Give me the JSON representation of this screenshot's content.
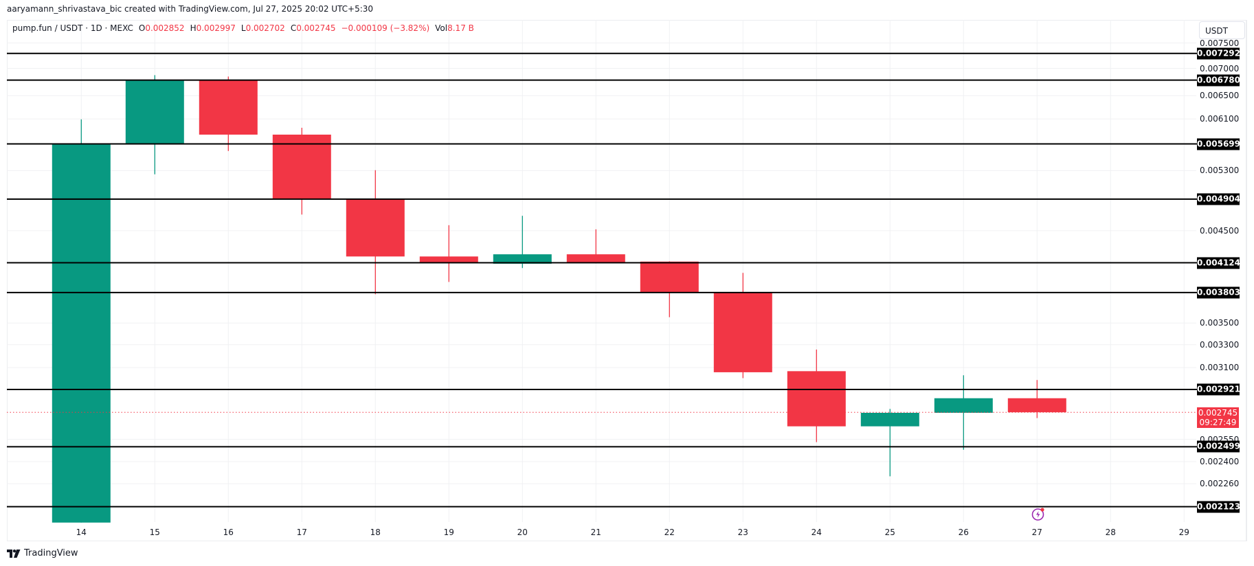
{
  "attribution": "aaryamann_shrivastava_bic created with TradingView.com, Jul 27, 2025 20:02 UTC+5:30",
  "legend": {
    "symbol": "pump.fun / USDT · 1D · MEXC",
    "open_label": "O",
    "open": "0.002852",
    "high_label": "H",
    "high": "0.002997",
    "low_label": "L",
    "low": "0.002702",
    "close_label": "C",
    "close": "0.002745",
    "change": "−0.000109 (−3.82%)",
    "vol_label": "Vol",
    "vol": "8.17 B"
  },
  "price_axis": {
    "currency": "USDT",
    "last_price": "0.002745",
    "countdown": "09:27:49"
  },
  "footer": {
    "brand": "TradingView"
  },
  "colors": {
    "up": "#089981",
    "down": "#f23645",
    "level_line": "#000000",
    "grid": "#f0f1f3",
    "event_icon": "#9c27b0"
  },
  "chart_data": {
    "type": "candlestick",
    "title": "pump.fun / USDT · 1D · MEXC",
    "xlabel": "",
    "ylabel": "USDT",
    "scale": "log",
    "ylim": [
      0.002,
      0.0076
    ],
    "grid": true,
    "categories": [
      "14",
      "15",
      "16",
      "17",
      "18",
      "19",
      "20",
      "21",
      "22",
      "23",
      "24",
      "25",
      "26",
      "27"
    ],
    "x_ticks": [
      "14",
      "15",
      "16",
      "17",
      "18",
      "19",
      "20",
      "21",
      "22",
      "23",
      "24",
      "25",
      "26",
      "27",
      "28",
      "29"
    ],
    "y_ticks": [
      "0.007500",
      "0.007000",
      "0.006500",
      "0.006100",
      "0.005300",
      "0.004500",
      "0.003500",
      "0.003300",
      "0.003100",
      "0.002550",
      "0.002400",
      "0.002260"
    ],
    "candles": [
      {
        "day": "14",
        "open": 0.002033,
        "high": 0.006093,
        "low": 0.002033,
        "close": 0.005699
      },
      {
        "day": "15",
        "open": 0.005699,
        "high": 0.006873,
        "low": 0.005247,
        "close": 0.00678
      },
      {
        "day": "16",
        "open": 0.00678,
        "high": 0.006846,
        "low": 0.00559,
        "close": 0.005845
      },
      {
        "day": "17",
        "open": 0.005845,
        "high": 0.005955,
        "low": 0.004702,
        "close": 0.004904
      },
      {
        "day": "18",
        "open": 0.004904,
        "high": 0.005306,
        "low": 0.003785,
        "close": 0.004195
      },
      {
        "day": "19",
        "open": 0.004195,
        "high": 0.004568,
        "low": 0.003914,
        "close": 0.004118
      },
      {
        "day": "20",
        "open": 0.004113,
        "high": 0.004686,
        "low": 0.004065,
        "close": 0.00422
      },
      {
        "day": "21",
        "open": 0.00422,
        "high": 0.004517,
        "low": 0.004116,
        "close": 0.00413
      },
      {
        "day": "22",
        "open": 0.004137,
        "high": 0.00414,
        "low": 0.003556,
        "close": 0.003803
      },
      {
        "day": "23",
        "open": 0.003809,
        "high": 0.004012,
        "low": 0.003012,
        "close": 0.003061
      },
      {
        "day": "24",
        "open": 0.00307,
        "high": 0.003256,
        "low": 0.002531,
        "close": 0.002642
      },
      {
        "day": "25",
        "open": 0.002642,
        "high": 0.00277,
        "low": 0.002306,
        "close": 0.002741
      },
      {
        "day": "26",
        "open": 0.002741,
        "high": 0.003036,
        "low": 0.002479,
        "close": 0.002852
      },
      {
        "day": "27",
        "open": 0.002852,
        "high": 0.002997,
        "low": 0.002702,
        "close": 0.002745
      }
    ],
    "horizontal_levels": [
      "0.007292",
      "0.006780",
      "0.005699",
      "0.004904",
      "0.004124",
      "0.003803",
      "0.002921",
      "0.002499",
      "0.002123"
    ],
    "last_price_line": "0.002745",
    "annotations": [
      "Last price 0.002745 with countdown 09:27:49",
      "Event marker (lightning) on day 27"
    ]
  }
}
